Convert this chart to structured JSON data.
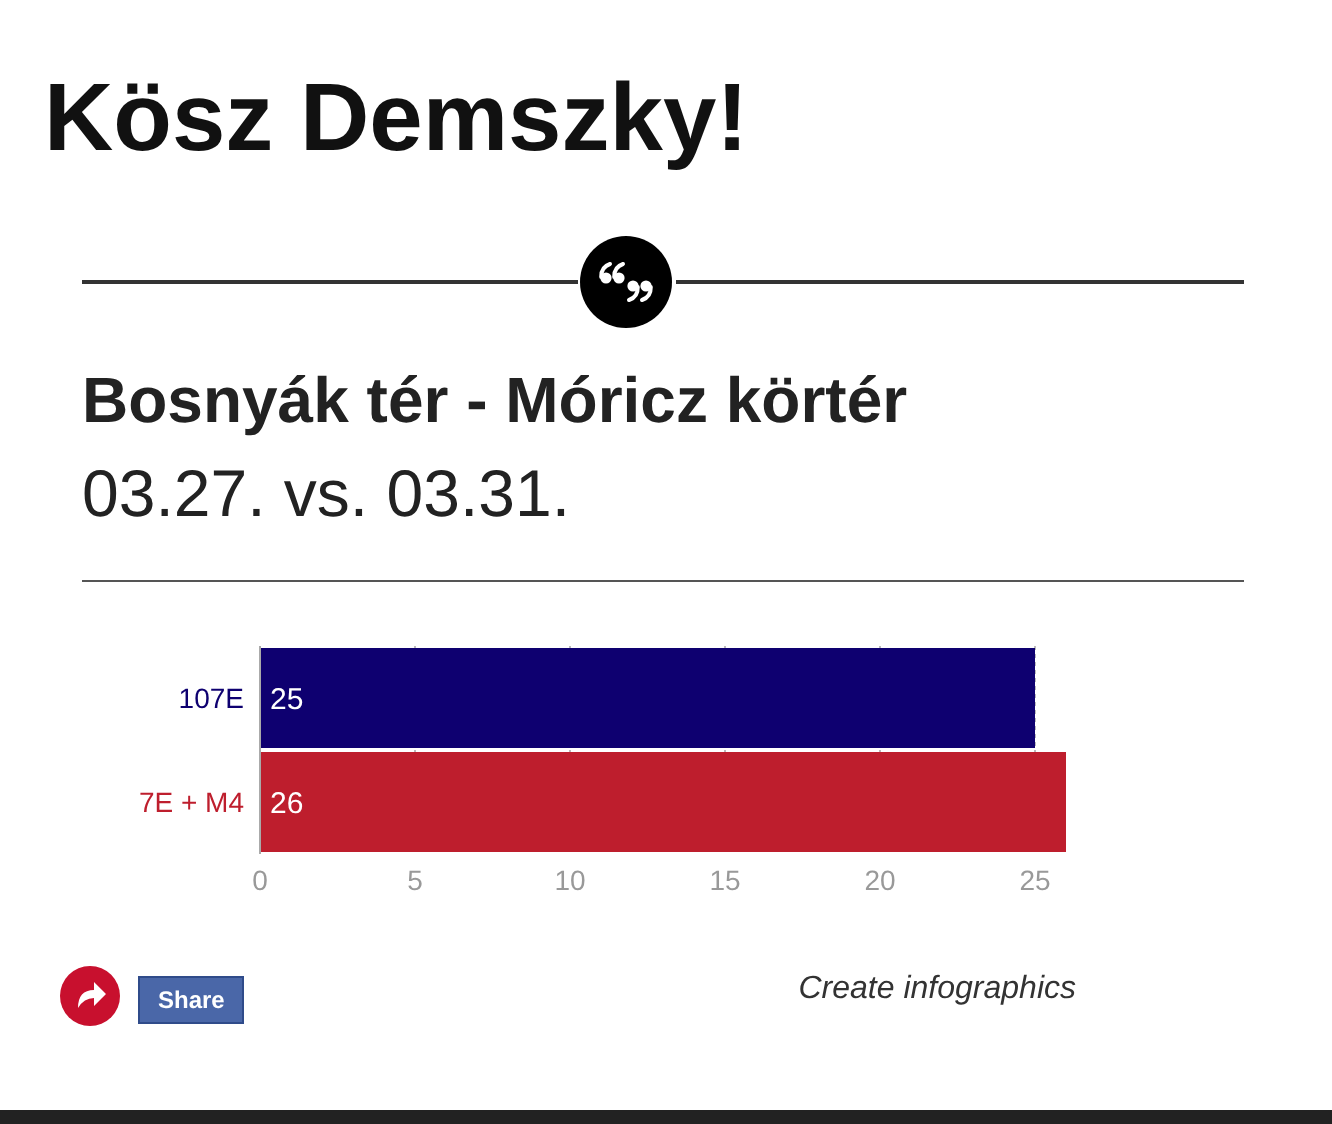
{
  "chart_data": {
    "type": "bar",
    "orientation": "horizontal",
    "title": "Kösz Demszky!",
    "subtitle": "Bosnyák tér - Móricz körtér",
    "annotations": [
      "03.27. vs. 03.31.",
      "Share",
      "Create infographics"
    ],
    "categories": [
      "107E",
      "7E + M4"
    ],
    "values": [
      25,
      26
    ],
    "colors": [
      "#0e0070",
      "#be1e2d"
    ],
    "xlim": [
      0,
      26
    ],
    "xticks": [
      0,
      5,
      10,
      15,
      20,
      25
    ],
    "grid": "x",
    "data_labels": true
  }
}
